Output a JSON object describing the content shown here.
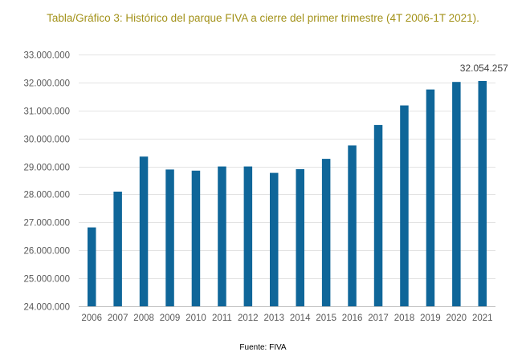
{
  "chart_data": {
    "type": "bar",
    "title": "Tabla/Gráfico 3: Histórico del parque FIVA a cierre del primer trimestre (4T 2006-1T 2021).",
    "xlabel": "",
    "ylabel": "",
    "ylim": [
      24000000,
      33000000
    ],
    "ytick_values": [
      24000000,
      25000000,
      26000000,
      27000000,
      28000000,
      29000000,
      30000000,
      31000000,
      32000000,
      33000000
    ],
    "ytick_labels": [
      "24.000.000",
      "25.000.000",
      "26.000.000",
      "27.000.000",
      "28.000.000",
      "29.000.000",
      "30.000.000",
      "31.000.000",
      "32.000.000",
      "33.000.000"
    ],
    "categories": [
      "2006",
      "2007",
      "2008",
      "2009",
      "2010",
      "2011",
      "2012",
      "2013",
      "2014",
      "2015",
      "2016",
      "2017",
      "2018",
      "2019",
      "2020",
      "2021"
    ],
    "values": [
      26820000,
      28100000,
      29350000,
      28890000,
      28850000,
      29000000,
      29000000,
      28770000,
      28900000,
      29270000,
      29750000,
      30480000,
      31180000,
      31750000,
      32020000,
      32054257
    ],
    "data_labels": [
      {
        "category": "2021",
        "text": "32.054.257"
      }
    ],
    "bar_color": "#0f6699",
    "grid": true,
    "legend": "none",
    "source": "Fuente: FIVA"
  }
}
